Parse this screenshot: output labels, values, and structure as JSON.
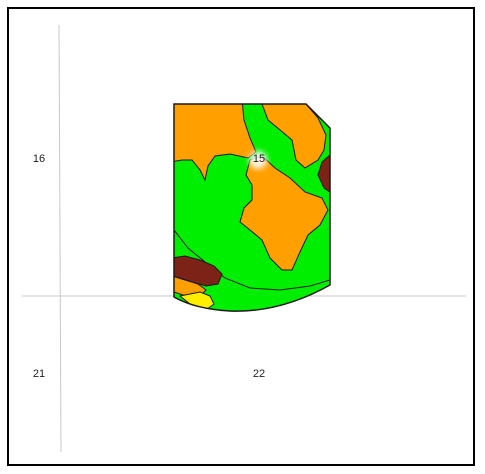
{
  "map": {
    "section_labels": {
      "s16": "16",
      "s15": "15",
      "s21": "21",
      "s22": "22"
    },
    "colors": {
      "frame": "#000000",
      "section_line": "#c8c8c8",
      "field_outline": "#1a1a1a",
      "zone_orange": "#ff9f00",
      "zone_green": "#00ee00",
      "zone_darkred": "#7d2216",
      "zone_yellow": "#ffee00",
      "highlight": "#ffffff"
    },
    "legend": []
  }
}
